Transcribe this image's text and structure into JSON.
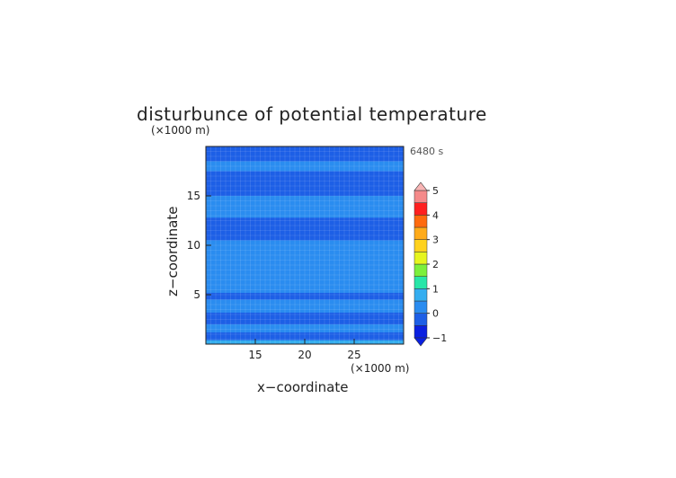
{
  "chart_data": {
    "type": "heatmap",
    "title": "disturbunce of potential temperature",
    "time_label": "6480 s",
    "xlabel": "x−coordinate",
    "ylabel": "z−coordinate",
    "x_unit": "(×1000 m)",
    "y_unit": "(×1000 m)",
    "xlim": [
      10,
      30
    ],
    "ylim": [
      0,
      20
    ],
    "x_ticks": [
      15,
      20,
      25
    ],
    "y_ticks": [
      5,
      10,
      15
    ],
    "colorbar": {
      "levels": [
        -1,
        -0.5,
        0,
        0.5,
        1,
        1.5,
        2,
        2.5,
        3,
        3.5,
        4,
        4.5,
        5
      ],
      "tick_values": [
        -1,
        0,
        1,
        2,
        3,
        4,
        5
      ],
      "tick_labels": [
        "−1",
        "0",
        "1",
        "2",
        "3",
        "4",
        "5"
      ],
      "colors": [
        "#0a20e0",
        "#1d5fe6",
        "#2a8cf0",
        "#35aef0",
        "#28e6a8",
        "#7cf03c",
        "#e6f51e",
        "#ffd21e",
        "#ffab1a",
        "#ff6a0e",
        "#ff2020",
        "#f58a8a",
        "#f8b4b4"
      ]
    },
    "bands": [
      {
        "z": [
          0.0,
          0.4
        ],
        "value": 0.8
      },
      {
        "z": [
          0.4,
          1.2
        ],
        "value": -0.2
      },
      {
        "z": [
          1.2,
          2.0
        ],
        "value": 0.2
      },
      {
        "z": [
          2.0,
          3.2
        ],
        "value": -0.2
      },
      {
        "z": [
          3.2,
          4.5
        ],
        "value": 0.1
      },
      {
        "z": [
          4.5,
          5.2
        ],
        "value": -0.3
      },
      {
        "z": [
          5.2,
          7.0
        ],
        "value": 0.1
      },
      {
        "z": [
          7.0,
          10.5
        ],
        "value": 0.2
      },
      {
        "z": [
          10.5,
          12.8
        ],
        "value": -0.2
      },
      {
        "z": [
          12.8,
          15.0
        ],
        "value": 0.2
      },
      {
        "z": [
          15.0,
          17.5
        ],
        "value": -0.2
      },
      {
        "z": [
          17.5,
          18.5
        ],
        "value": 0.2
      },
      {
        "z": [
          18.5,
          20.0
        ],
        "value": -0.2
      }
    ]
  }
}
